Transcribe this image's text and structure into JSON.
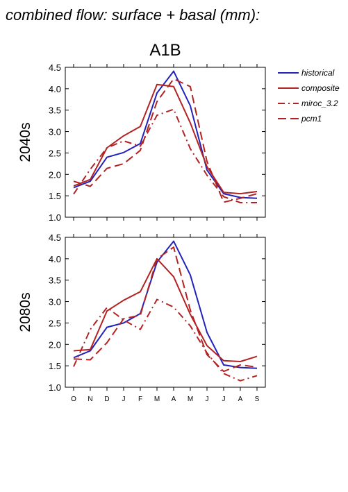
{
  "figure": {
    "suptitle": "combined flow: surface + basal (mm):",
    "panel_title": "A1B"
  },
  "colors": {
    "historical": "#2222bb",
    "composite": "#b22222",
    "miroc_3.2": "#b22222",
    "pcm1": "#b22222"
  },
  "legend": {
    "placement": "right",
    "entries": [
      {
        "label": "historical",
        "style": "solid",
        "color": "#2222bb"
      },
      {
        "label": "composite",
        "style": "solid",
        "color": "#b22222"
      },
      {
        "label": "miroc_3.2",
        "style": "dash-dot",
        "color": "#b22222"
      },
      {
        "label": "pcm1",
        "style": "dashed",
        "color": "#b22222"
      }
    ]
  },
  "chart_data": [
    {
      "type": "line",
      "ylabel": "2040s",
      "categories": [
        "O",
        "N",
        "D",
        "J",
        "F",
        "M",
        "A",
        "M",
        "J",
        "J",
        "A",
        "S"
      ],
      "ylim": [
        1.0,
        4.5
      ],
      "yticks": [
        "1.0",
        "1.5",
        "2.0",
        "2.5",
        "3.0",
        "3.5",
        "4.0",
        "4.5"
      ],
      "show_x_tick_labels": false,
      "grid": false,
      "series": [
        {
          "name": "historical",
          "style": "solid",
          "values": [
            1.69,
            1.84,
            2.4,
            2.51,
            2.72,
            3.9,
            4.41,
            3.6,
            2.1,
            1.55,
            1.46,
            1.44
          ]
        },
        {
          "name": "composite",
          "style": "solid",
          "values": [
            1.73,
            1.88,
            2.62,
            2.9,
            3.12,
            4.1,
            4.05,
            3.2,
            2.18,
            1.58,
            1.55,
            1.6
          ]
        },
        {
          "name": "miroc_3.2",
          "style": "dash-dot",
          "values": [
            1.54,
            2.12,
            2.62,
            2.78,
            2.66,
            3.38,
            3.52,
            2.6,
            1.98,
            1.48,
            1.34,
            1.34
          ]
        },
        {
          "name": "pcm1",
          "style": "dashed",
          "values": [
            1.84,
            1.72,
            2.14,
            2.25,
            2.56,
            3.7,
            4.23,
            4.05,
            2.3,
            1.35,
            1.44,
            1.55
          ]
        }
      ]
    },
    {
      "type": "line",
      "ylabel": "2080s",
      "categories": [
        "O",
        "N",
        "D",
        "J",
        "F",
        "M",
        "A",
        "M",
        "J",
        "J",
        "A",
        "S"
      ],
      "ylim": [
        1.0,
        4.5
      ],
      "yticks": [
        "1.0",
        "1.5",
        "2.0",
        "2.5",
        "3.0",
        "3.5",
        "4.0",
        "4.5"
      ],
      "show_x_tick_labels": true,
      "grid": false,
      "series": [
        {
          "name": "historical",
          "style": "solid",
          "values": [
            1.69,
            1.85,
            2.4,
            2.5,
            2.72,
            3.92,
            4.41,
            3.62,
            2.28,
            1.52,
            1.46,
            1.44
          ]
        },
        {
          "name": "composite",
          "style": "solid",
          "values": [
            1.85,
            1.88,
            2.78,
            3.03,
            3.23,
            4.0,
            3.58,
            2.7,
            1.97,
            1.62,
            1.6,
            1.72
          ]
        },
        {
          "name": "miroc_3.2",
          "style": "dash-dot",
          "values": [
            1.48,
            2.35,
            2.86,
            2.57,
            2.35,
            3.05,
            2.87,
            2.43,
            1.8,
            1.32,
            1.15,
            1.27
          ]
        },
        {
          "name": "pcm1",
          "style": "dashed",
          "values": [
            1.66,
            1.64,
            2.04,
            2.6,
            2.68,
            4.0,
            4.27,
            2.8,
            1.76,
            1.37,
            1.52,
            1.47
          ]
        }
      ]
    }
  ]
}
